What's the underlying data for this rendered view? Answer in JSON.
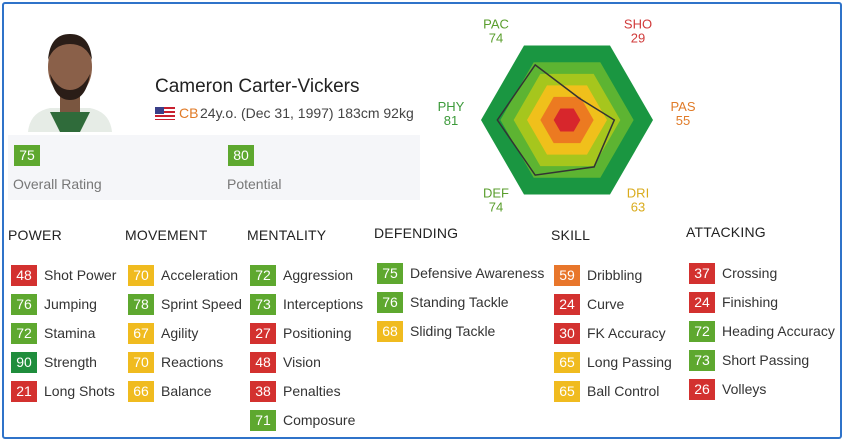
{
  "player": {
    "name": "Cameron Carter-Vickers",
    "position": "CB",
    "details": "24y.o. (Dec 31, 1997) 183cm 92kg"
  },
  "ratings": [
    {
      "value": 75,
      "label": "Overall Rating",
      "color": "#5ea82f"
    },
    {
      "value": 80,
      "label": "Potential",
      "color": "#5ea82f"
    }
  ],
  "radar": {
    "rlim": [
      0,
      100
    ],
    "axes": [
      {
        "label": "PAC",
        "value": 74,
        "color": "#5a9e2d"
      },
      {
        "label": "SHO",
        "value": 29,
        "color": "#d03a3a"
      },
      {
        "label": "PAS",
        "value": 55,
        "color": "#e07b28"
      },
      {
        "label": "DRI",
        "value": 63,
        "color": "#d9ab1c"
      },
      {
        "label": "DEF",
        "value": 74,
        "color": "#5a9e2d"
      },
      {
        "label": "PHY",
        "value": 81,
        "color": "#3c9a3a"
      }
    ]
  },
  "sections": [
    {
      "title": "POWER",
      "stats": [
        {
          "value": 48,
          "label": "Shot Power",
          "color": "#d3312f"
        },
        {
          "value": 76,
          "label": "Jumping",
          "color": "#5ea82f"
        },
        {
          "value": 72,
          "label": "Stamina",
          "color": "#5ea82f"
        },
        {
          "value": 90,
          "label": "Strength",
          "color": "#1f8d3c"
        },
        {
          "value": 21,
          "label": "Long Shots",
          "color": "#d3312f"
        }
      ]
    },
    {
      "title": "MOVEMENT",
      "stats": [
        {
          "value": 70,
          "label": "Acceleration",
          "color": "#f0bb1f"
        },
        {
          "value": 78,
          "label": "Sprint Speed",
          "color": "#5ea82f"
        },
        {
          "value": 67,
          "label": "Agility",
          "color": "#f0bb1f"
        },
        {
          "value": 70,
          "label": "Reactions",
          "color": "#f0bb1f"
        },
        {
          "value": 66,
          "label": "Balance",
          "color": "#f0bb1f"
        }
      ]
    },
    {
      "title": "MENTALITY",
      "stats": [
        {
          "value": 72,
          "label": "Aggression",
          "color": "#5ea82f"
        },
        {
          "value": 73,
          "label": "Interceptions",
          "color": "#5ea82f"
        },
        {
          "value": 27,
          "label": "Positioning",
          "color": "#d3312f"
        },
        {
          "value": 48,
          "label": "Vision",
          "color": "#d3312f"
        },
        {
          "value": 38,
          "label": "Penalties",
          "color": "#d3312f"
        },
        {
          "value": 71,
          "label": "Composure",
          "color": "#5ea82f"
        }
      ]
    },
    {
      "title": "DEFENDING",
      "stats": [
        {
          "value": 75,
          "label": "Defensive Awareness",
          "color": "#5ea82f"
        },
        {
          "value": 76,
          "label": "Standing Tackle",
          "color": "#5ea82f"
        },
        {
          "value": 68,
          "label": "Sliding Tackle",
          "color": "#f0bb1f"
        }
      ]
    },
    {
      "title": "SKILL",
      "stats": [
        {
          "value": 59,
          "label": "Dribbling",
          "color": "#e8762b"
        },
        {
          "value": 24,
          "label": "Curve",
          "color": "#d3312f"
        },
        {
          "value": 30,
          "label": "FK Accuracy",
          "color": "#d3312f"
        },
        {
          "value": 65,
          "label": "Long Passing",
          "color": "#f0bb1f"
        },
        {
          "value": 65,
          "label": "Ball Control",
          "color": "#f0bb1f"
        }
      ]
    },
    {
      "title": "ATTACKING",
      "stats": [
        {
          "value": 37,
          "label": "Crossing",
          "color": "#d3312f"
        },
        {
          "value": 24,
          "label": "Finishing",
          "color": "#d3312f"
        },
        {
          "value": 72,
          "label": "Heading Accuracy",
          "color": "#5ea82f"
        },
        {
          "value": 73,
          "label": "Short Passing",
          "color": "#5ea82f"
        },
        {
          "value": 26,
          "label": "Volleys",
          "color": "#d3312f"
        }
      ]
    }
  ]
}
